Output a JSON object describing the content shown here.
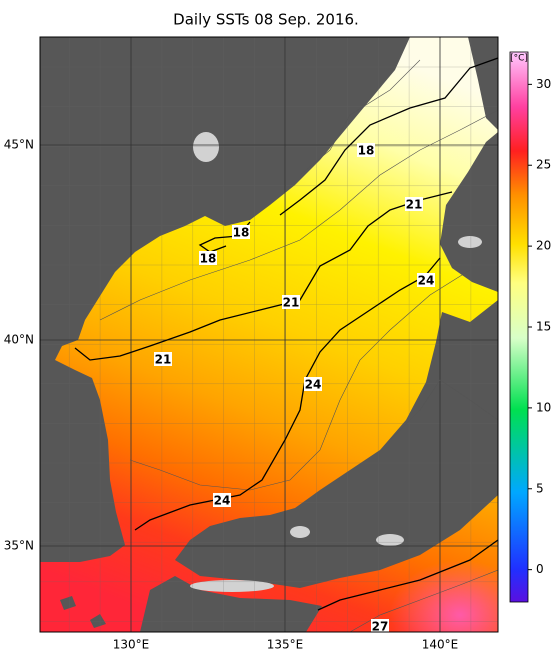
{
  "title": "Daily SSTs 08 Sep. 2016.",
  "lat_labels": [
    "45°N",
    "40°N",
    "35°N"
  ],
  "lon_labels": [
    "130°E",
    "135°E",
    "140°E"
  ],
  "colorbar": {
    "unit": "[°C]",
    "ticks": [
      0,
      5,
      10,
      15,
      20,
      25,
      30
    ],
    "lim": [
      -2,
      32
    ]
  },
  "contour_labels": [
    "18",
    "18",
    "18",
    "21",
    "21",
    "21",
    "24",
    "24",
    "24",
    "27"
  ]
}
